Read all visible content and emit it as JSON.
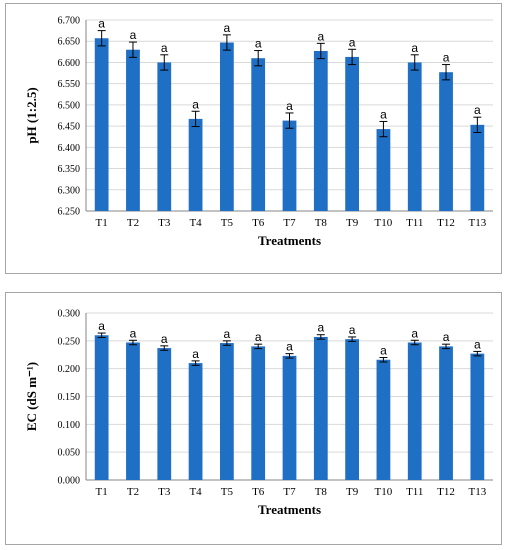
{
  "colors": {
    "bar": "#1f6fc5",
    "gridline": "#d9d9d9",
    "axis": "#868686",
    "error": "#000000"
  },
  "chart_data": [
    {
      "type": "bar",
      "categories": [
        "T1",
        "T2",
        "T3",
        "T4",
        "T5",
        "T6",
        "T7",
        "T8",
        "T9",
        "T10",
        "T11",
        "T12",
        "T13"
      ],
      "values": [
        6.657,
        6.63,
        6.6,
        6.467,
        6.647,
        6.61,
        6.463,
        6.627,
        6.613,
        6.443,
        6.6,
        6.577,
        6.453
      ],
      "errors": [
        0.018,
        0.018,
        0.018,
        0.018,
        0.018,
        0.018,
        0.018,
        0.018,
        0.018,
        0.018,
        0.018,
        0.018,
        0.018
      ],
      "data_labels": [
        "a",
        "a",
        "a",
        "a",
        "a",
        "a",
        "a",
        "a",
        "a",
        "a",
        "a",
        "a",
        "a"
      ],
      "xlabel": "Treatments",
      "ylabel": "pH (1:2.5)",
      "ylim": [
        6.25,
        6.7
      ],
      "yticks": [
        "6.250",
        "6.300",
        "6.350",
        "6.400",
        "6.450",
        "6.500",
        "6.550",
        "6.600",
        "6.650",
        "6.700"
      ],
      "grid": true,
      "legend": "none"
    },
    {
      "type": "bar",
      "categories": [
        "T1",
        "T2",
        "T3",
        "T4",
        "T5",
        "T6",
        "T7",
        "T8",
        "T9",
        "T10",
        "T11",
        "T12",
        "T13"
      ],
      "values": [
        0.26,
        0.247,
        0.237,
        0.21,
        0.246,
        0.24,
        0.223,
        0.257,
        0.253,
        0.216,
        0.247,
        0.24,
        0.227
      ],
      "errors": [
        0.004,
        0.004,
        0.004,
        0.004,
        0.004,
        0.004,
        0.004,
        0.004,
        0.004,
        0.004,
        0.004,
        0.004,
        0.004
      ],
      "data_labels": [
        "a",
        "a",
        "a",
        "a",
        "a",
        "a",
        "a",
        "a",
        "a",
        "a",
        "a",
        "a",
        "a"
      ],
      "xlabel": "Treatments",
      "ylabel": "EC (dS m⁻¹)",
      "ylim": [
        0,
        0.3
      ],
      "yticks": [
        "0.000",
        "0.050",
        "0.100",
        "0.150",
        "0.200",
        "0.250",
        "0.300"
      ],
      "grid": true,
      "legend": "none"
    }
  ]
}
